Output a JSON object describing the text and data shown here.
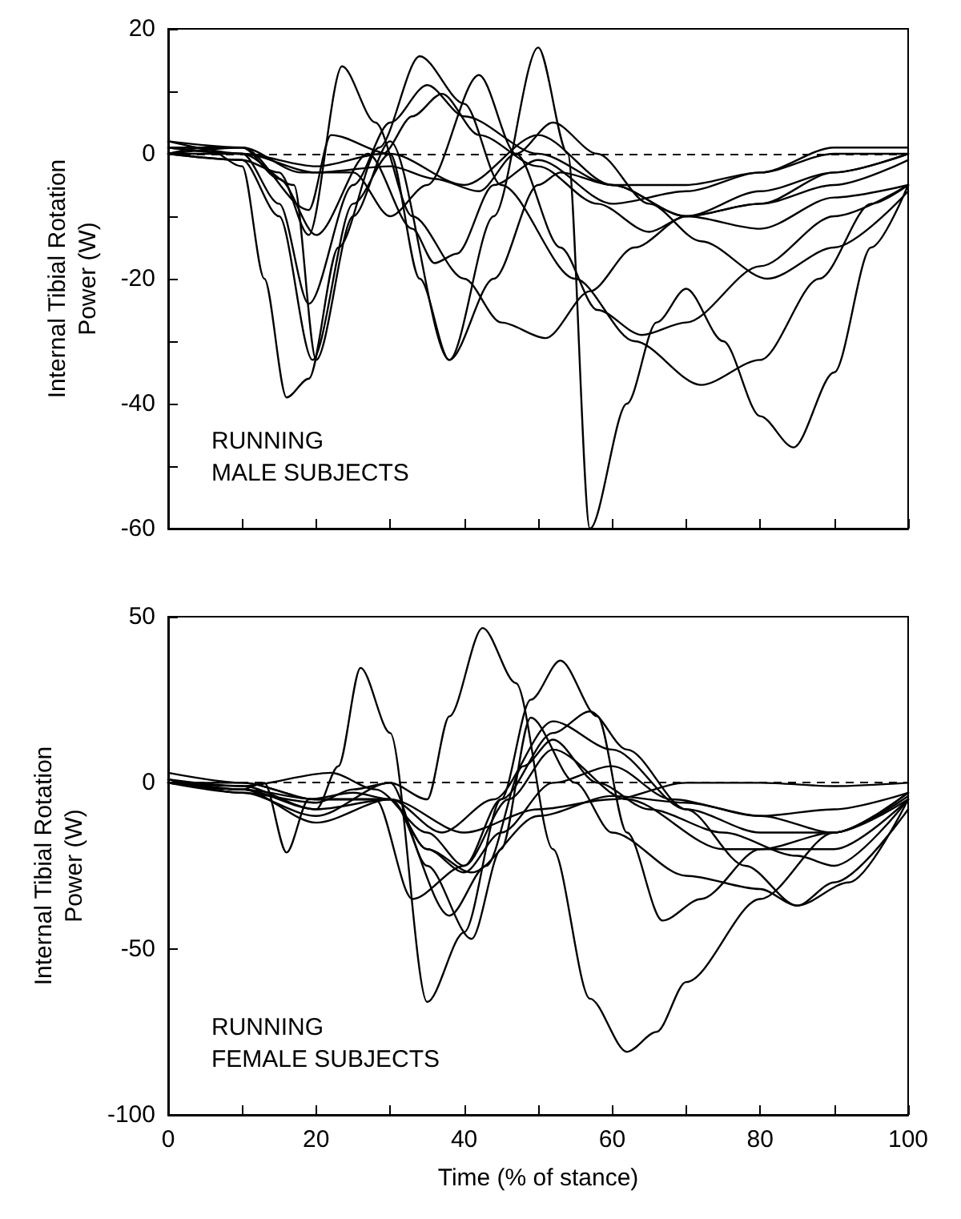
{
  "chart_data": [
    {
      "type": "line",
      "ylabel": "Internal Tibial Rotation Power (W)",
      "annotations": [
        "RUNNING",
        "MALE SUBJECTS"
      ],
      "xlim": [
        0,
        100
      ],
      "xticks": [
        0,
        {
          "value": 10,
          "label": null
        },
        20,
        {
          "value": 30,
          "label": null
        },
        40,
        {
          "value": 50,
          "label": null
        },
        60,
        {
          "value": 70,
          "label": null
        },
        80,
        {
          "value": 90,
          "label": null
        },
        100
      ],
      "ylim": [
        -60,
        20
      ],
      "yticks": [
        -60,
        {
          "value": -50,
          "label": null
        },
        -40,
        {
          "value": -30,
          "label": null
        },
        -20,
        {
          "value": -10,
          "label": null
        },
        0,
        {
          "value": 10,
          "label": null
        },
        20
      ],
      "grid": false,
      "marker": "none",
      "line_style": "solid",
      "tick_labels": "y",
      "ref_lines": [
        {
          "axis": "y",
          "value": 0,
          "line_style": "dashed",
          "color": "#000000"
        }
      ],
      "series": [
        {
          "color": "#000000",
          "x": [
            0,
            10,
            17,
            20,
            25,
            30,
            38,
            44,
            50,
            54,
            57,
            62,
            66,
            70,
            75,
            80,
            84.5,
            90,
            95,
            100
          ],
          "values": [
            1,
            0,
            -5,
            -33,
            -10,
            2,
            -33,
            -10,
            17,
            0,
            -60,
            -40,
            -27,
            -21.6,
            -30,
            -42,
            -47,
            -35,
            -15,
            -5
          ]
        },
        {
          "color": "#000000",
          "x": [
            0,
            10,
            15,
            19,
            23.5,
            28,
            33,
            40,
            45,
            51,
            57,
            63,
            70,
            80,
            90,
            100
          ],
          "values": [
            0,
            -1,
            -3,
            -13,
            14,
            5,
            -10,
            -20,
            -27,
            -29.5,
            -22,
            -15,
            -10,
            -8,
            -5,
            -1
          ]
        },
        {
          "color": "#000000",
          "x": [
            0,
            5,
            10,
            13,
            16,
            19,
            23,
            28.5,
            34,
            40,
            45,
            55,
            63,
            72,
            80,
            88,
            95,
            100
          ],
          "values": [
            0,
            1,
            -2,
            -20,
            -39,
            -36,
            -15,
            1,
            15.6,
            8,
            -5,
            -20,
            -30,
            -37,
            -33,
            -20,
            -8,
            -5
          ]
        },
        {
          "color": "#000000",
          "x": [
            0,
            10,
            18,
            25,
            30,
            35,
            42,
            47,
            53,
            58,
            64,
            70,
            80,
            90,
            100
          ],
          "values": [
            1,
            1,
            -3,
            -3,
            -10,
            -5,
            12.6,
            0,
            -15,
            -25,
            -29,
            -27,
            -18,
            -10,
            -5
          ]
        },
        {
          "color": "#000000",
          "x": [
            0,
            10,
            20,
            29,
            33,
            37,
            42,
            50,
            58,
            65,
            70,
            80,
            90,
            100
          ],
          "values": [
            0,
            0,
            -2,
            0,
            6,
            9.6,
            3,
            -2,
            -8,
            -12.5,
            -10,
            -6,
            -3,
            0
          ]
        },
        {
          "color": "#000000",
          "x": [
            0,
            10,
            20,
            30,
            36,
            42,
            47,
            52,
            58,
            65,
            72,
            81,
            90,
            100
          ],
          "values": [
            1,
            0,
            -3,
            -2,
            -4,
            -6,
            0,
            5,
            0,
            -8,
            -14,
            -20,
            -15,
            -6
          ]
        },
        {
          "color": "#000000",
          "x": [
            0,
            10,
            15,
            20,
            27,
            33,
            36,
            39,
            44,
            50,
            60,
            70,
            80,
            90,
            100
          ],
          "values": [
            0,
            1,
            -4,
            -13,
            0,
            -12,
            -17.5,
            -16,
            -5,
            -1,
            -8,
            -6,
            -3,
            0,
            0
          ]
        },
        {
          "color": "#000000",
          "x": [
            0,
            10,
            15,
            19,
            25,
            30,
            35,
            40,
            50,
            60,
            70,
            80,
            90,
            100
          ],
          "values": [
            2,
            0,
            -8,
            -24,
            -5,
            5,
            11,
            6,
            0,
            -5,
            -5,
            -3,
            1,
            1
          ]
        },
        {
          "color": "#000000",
          "x": [
            0,
            10,
            15,
            19.5,
            25,
            30,
            34,
            38,
            44,
            50,
            53,
            60,
            70,
            80,
            90,
            100
          ],
          "values": [
            0,
            -1,
            -10,
            -33,
            -8,
            0,
            -20,
            -33,
            -20,
            -5,
            -3,
            -5,
            -10,
            -8,
            -3,
            0
          ]
        },
        {
          "color": "#000000",
          "x": [
            0,
            10,
            19,
            22,
            30,
            40,
            50,
            60,
            70,
            80,
            90,
            100
          ],
          "values": [
            2,
            1,
            -9,
            3,
            0,
            -5,
            3,
            -5,
            -10,
            -12,
            -7,
            -5
          ]
        }
      ]
    },
    {
      "type": "line",
      "xlabel": "Time (% of stance)",
      "ylabel": "Internal Tibial Rotation Power (W)",
      "annotations": [
        "RUNNING",
        "FEMALE SUBJECTS"
      ],
      "xlim": [
        0,
        100
      ],
      "xticks": [
        0,
        {
          "value": 10,
          "label": null
        },
        20,
        {
          "value": 30,
          "label": null
        },
        40,
        {
          "value": 50,
          "label": null
        },
        60,
        {
          "value": 70,
          "label": null
        },
        80,
        {
          "value": 90,
          "label": null
        },
        100
      ],
      "ylim": [
        -100,
        50
      ],
      "yticks": [
        -100,
        -50,
        0,
        50
      ],
      "grid": false,
      "marker": "none",
      "line_style": "solid",
      "ref_lines": [
        {
          "axis": "y",
          "value": 0,
          "line_style": "dashed",
          "color": "#000000"
        }
      ],
      "series": [
        {
          "color": "#000000",
          "x": [
            0,
            10,
            20,
            23,
            26,
            30,
            35,
            40,
            45,
            49,
            53,
            58,
            62,
            66.8,
            72,
            80,
            90,
            100
          ],
          "values": [
            0,
            -2,
            -8,
            5,
            34.6,
            15,
            -66,
            -45,
            -5,
            25,
            36.8,
            20,
            -15,
            -41.5,
            -35,
            -20,
            -15,
            -5
          ]
        },
        {
          "color": "#000000",
          "x": [
            0,
            10,
            20,
            25,
            30,
            35,
            38,
            42.5,
            47,
            52,
            57,
            62,
            66,
            70,
            80,
            90,
            100
          ],
          "values": [
            1,
            -3,
            -6,
            -2,
            0,
            -5,
            20,
            46.6,
            30,
            -20,
            -65,
            -81,
            -75,
            -60,
            -35,
            -15,
            -3
          ]
        },
        {
          "color": "#000000",
          "x": [
            0,
            10,
            20,
            30,
            35,
            41,
            45,
            49,
            55,
            60,
            70,
            80,
            85,
            90,
            100
          ],
          "values": [
            0,
            -3,
            -10,
            0,
            -25,
            -47,
            -20,
            19.6,
            0,
            -15,
            -28,
            -32,
            -37,
            -30,
            -8
          ]
        },
        {
          "color": "#000000",
          "x": [
            0,
            10,
            20,
            28,
            33,
            40,
            45,
            52,
            57,
            62,
            70,
            78,
            85,
            92,
            100
          ],
          "values": [
            0,
            -2,
            -5,
            -5,
            -35,
            -25,
            -5,
            15,
            21.5,
            10,
            -8,
            -25,
            -37,
            -30,
            -5
          ]
        },
        {
          "color": "#000000",
          "x": [
            0,
            10,
            20,
            30,
            38,
            43,
            48,
            52,
            58,
            65,
            75,
            85,
            90,
            100
          ],
          "values": [
            0,
            -1,
            -8,
            -5,
            -40,
            -25,
            5,
            13,
            0,
            -8,
            -15,
            -22,
            -25,
            -5
          ]
        },
        {
          "color": "#000000",
          "x": [
            0,
            10,
            20,
            30,
            35,
            40,
            45,
            52,
            60,
            68,
            80,
            90,
            100
          ],
          "values": [
            0,
            0,
            -5,
            -5,
            -20,
            -27,
            -15,
            0,
            5,
            -5,
            -10,
            -15,
            -4
          ]
        },
        {
          "color": "#000000",
          "x": [
            0,
            10,
            20,
            30,
            37,
            44,
            52,
            60,
            70,
            80,
            90,
            100
          ],
          "values": [
            1,
            -2,
            -12,
            -5,
            -15,
            -5,
            18.5,
            10,
            -8,
            -15,
            -15,
            -3
          ]
        },
        {
          "color": "#000000",
          "x": [
            0,
            10,
            13,
            16,
            19,
            25,
            30,
            35,
            41,
            50,
            60,
            70,
            80,
            90,
            100
          ],
          "values": [
            0,
            -2,
            0,
            -21,
            -5,
            -3,
            -5,
            -20,
            -27,
            -10,
            -4,
            -6,
            -10,
            -8,
            -3
          ]
        },
        {
          "color": "#000000",
          "x": [
            0,
            10,
            20,
            30,
            40,
            50,
            60,
            70,
            80,
            90,
            100
          ],
          "values": [
            3,
            0,
            -5,
            -5,
            -15,
            -8,
            -5,
            0,
            0,
            -1,
            0
          ]
        },
        {
          "color": "#000000",
          "x": [
            0,
            10,
            22,
            28,
            35,
            40,
            46,
            52,
            62,
            75,
            90,
            100
          ],
          "values": [
            1,
            -1,
            3,
            -2,
            -15,
            -25,
            -5,
            10,
            -5,
            -20,
            -20,
            -5
          ]
        }
      ]
    }
  ]
}
